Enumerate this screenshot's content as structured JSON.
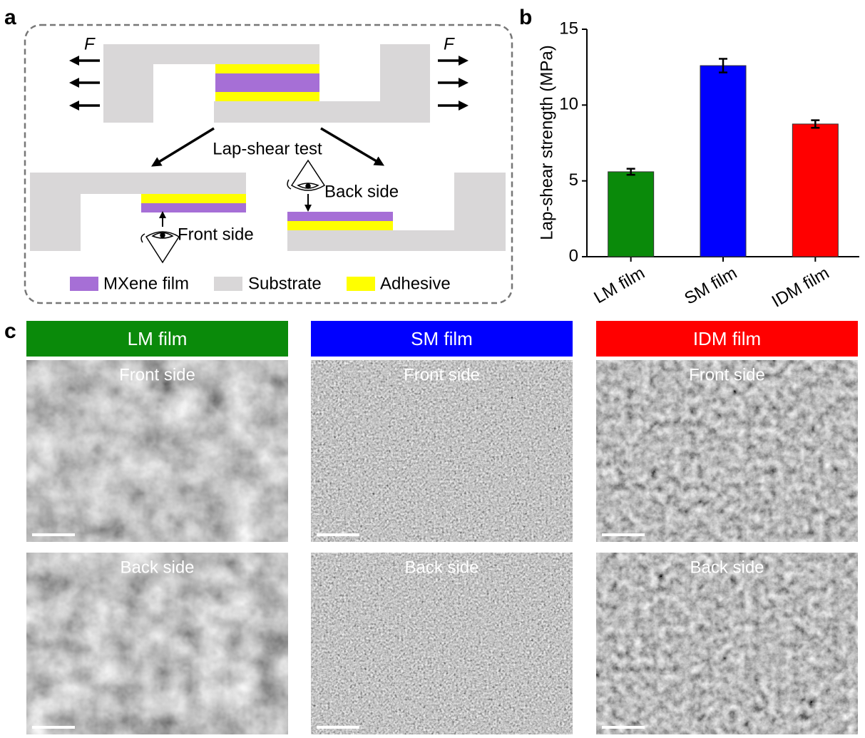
{
  "panel_labels": [
    "a",
    "b",
    "c"
  ],
  "diagram": {
    "force_labels": [
      "F",
      "F"
    ],
    "test_label": "Lap-shear test",
    "view_labels": [
      "Front side",
      "Back side"
    ],
    "legend": [
      "MXene film",
      "Substrate",
      "Adhesive"
    ]
  },
  "chart_data": {
    "type": "bar",
    "y_label": "Lap-shear strength (MPa)",
    "categories": [
      "LM film",
      "SM film",
      "IDM film"
    ],
    "values": [
      5.6,
      12.6,
      8.75
    ],
    "errors": [
      0.2,
      0.45,
      0.25
    ],
    "colors": [
      "#0a8a0a",
      "#0000ff",
      "#ff0000"
    ],
    "ylim": [
      0,
      15
    ],
    "yticks": [
      0,
      5,
      10,
      15
    ]
  },
  "images": {
    "columns": [
      {
        "title": "LM film",
        "rows": [
          "Front side",
          "Back side"
        ]
      },
      {
        "title": "SM film",
        "rows": [
          "Front side",
          "Back side"
        ]
      },
      {
        "title": "IDM film",
        "rows": [
          "Front side",
          "Back side"
        ]
      }
    ]
  }
}
